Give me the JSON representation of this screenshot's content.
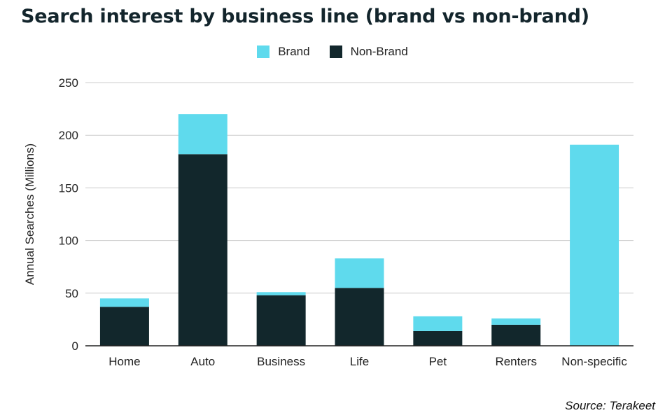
{
  "chart_data": {
    "type": "bar",
    "stacked": true,
    "title": "Search interest by business line (brand vs non-brand)",
    "ylabel": "Annual Searches (Millions)",
    "xlabel": "",
    "categories": [
      "Home",
      "Auto",
      "Business",
      "Life",
      "Pet",
      "Renters",
      "Non-specific"
    ],
    "series": [
      {
        "name": "Non-Brand",
        "color": "#12272c",
        "values": [
          37,
          182,
          48,
          55,
          14,
          20,
          0
        ]
      },
      {
        "name": "Brand",
        "color": "#5fdaed",
        "values": [
          8,
          38,
          3,
          28,
          14,
          6,
          191
        ]
      }
    ],
    "ylim": [
      0,
      250
    ],
    "yticks": [
      0,
      50,
      100,
      150,
      200,
      250
    ],
    "grid": true,
    "legend_position": "top-center",
    "source": "Source: Terakeet"
  }
}
